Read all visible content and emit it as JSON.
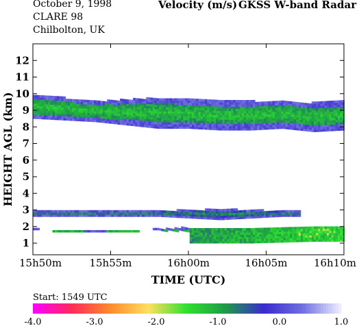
{
  "header": {
    "date": "October   9, 1998",
    "campaign": "CLARE 98",
    "location": "Chilbolton, UK",
    "title": "Velocity (m/s)",
    "source": "GKSS  W-band Radar",
    "start": "Start: 1549 UTC"
  },
  "chart_data": {
    "type": "heatmap",
    "title": "Velocity (m/s)",
    "xlabel": "TIME (UTC)",
    "ylabel": "HEIGHT AGL (km)",
    "x_ticks": [
      "15h50m",
      "15h55m",
      "16h00m",
      "16h05m",
      "16h10m"
    ],
    "x_tick_minutes": [
      0,
      5,
      10,
      15,
      20
    ],
    "xlim_minutes_after_1550": [
      0,
      20
    ],
    "y_ticks": [
      1,
      2,
      3,
      4,
      5,
      6,
      7,
      8,
      9,
      10,
      11,
      12
    ],
    "ylim": [
      0.3,
      13.0
    ],
    "colorbar": {
      "range": [
        -4.0,
        1.0
      ],
      "ticks": [
        "-4.0",
        "-3.0",
        "-2.0",
        "-1.0",
        "0.0",
        "1.0"
      ],
      "colors": [
        "#ff00ff",
        "#ff2a5a",
        "#ff8a2a",
        "#ffe060",
        "#2ee02e",
        "#1f9a4a",
        "#3a2ad0",
        "#7070e0",
        "#f0f0ff"
      ]
    },
    "layers": [
      {
        "name_hint": "upper cloud",
        "time_minutes": [
          0,
          2,
          4,
          6,
          8,
          10,
          12,
          14,
          16,
          18,
          20
        ],
        "top_km": [
          9.9,
          9.7,
          9.5,
          9.6,
          9.7,
          9.6,
          9.5,
          9.5,
          9.5,
          9.4,
          9.5
        ],
        "base_km": [
          8.5,
          8.4,
          8.3,
          8.1,
          7.9,
          7.9,
          7.8,
          7.8,
          7.9,
          7.7,
          7.8
        ],
        "mean_velocity": -0.6
      },
      {
        "name_hint": "thin layer",
        "time_minutes": [
          0,
          4,
          8,
          12,
          16,
          17.2
        ],
        "top_km": [
          2.9,
          2.9,
          2.9,
          3.0,
          2.9,
          2.9
        ],
        "base_km": [
          2.6,
          2.6,
          2.6,
          2.4,
          2.6,
          2.6
        ],
        "mean_velocity": -0.2
      },
      {
        "name_hint": "low cloud",
        "time_minutes": [
          0,
          4,
          8,
          10,
          14,
          18,
          20
        ],
        "top_km": [
          1.8,
          1.7,
          1.8,
          1.9,
          1.9,
          2.0,
          1.9
        ],
        "base_km": [
          1.4,
          1.4,
          1.4,
          1.0,
          1.0,
          1.1,
          1.1
        ],
        "mean_velocity": -0.8
      }
    ]
  }
}
